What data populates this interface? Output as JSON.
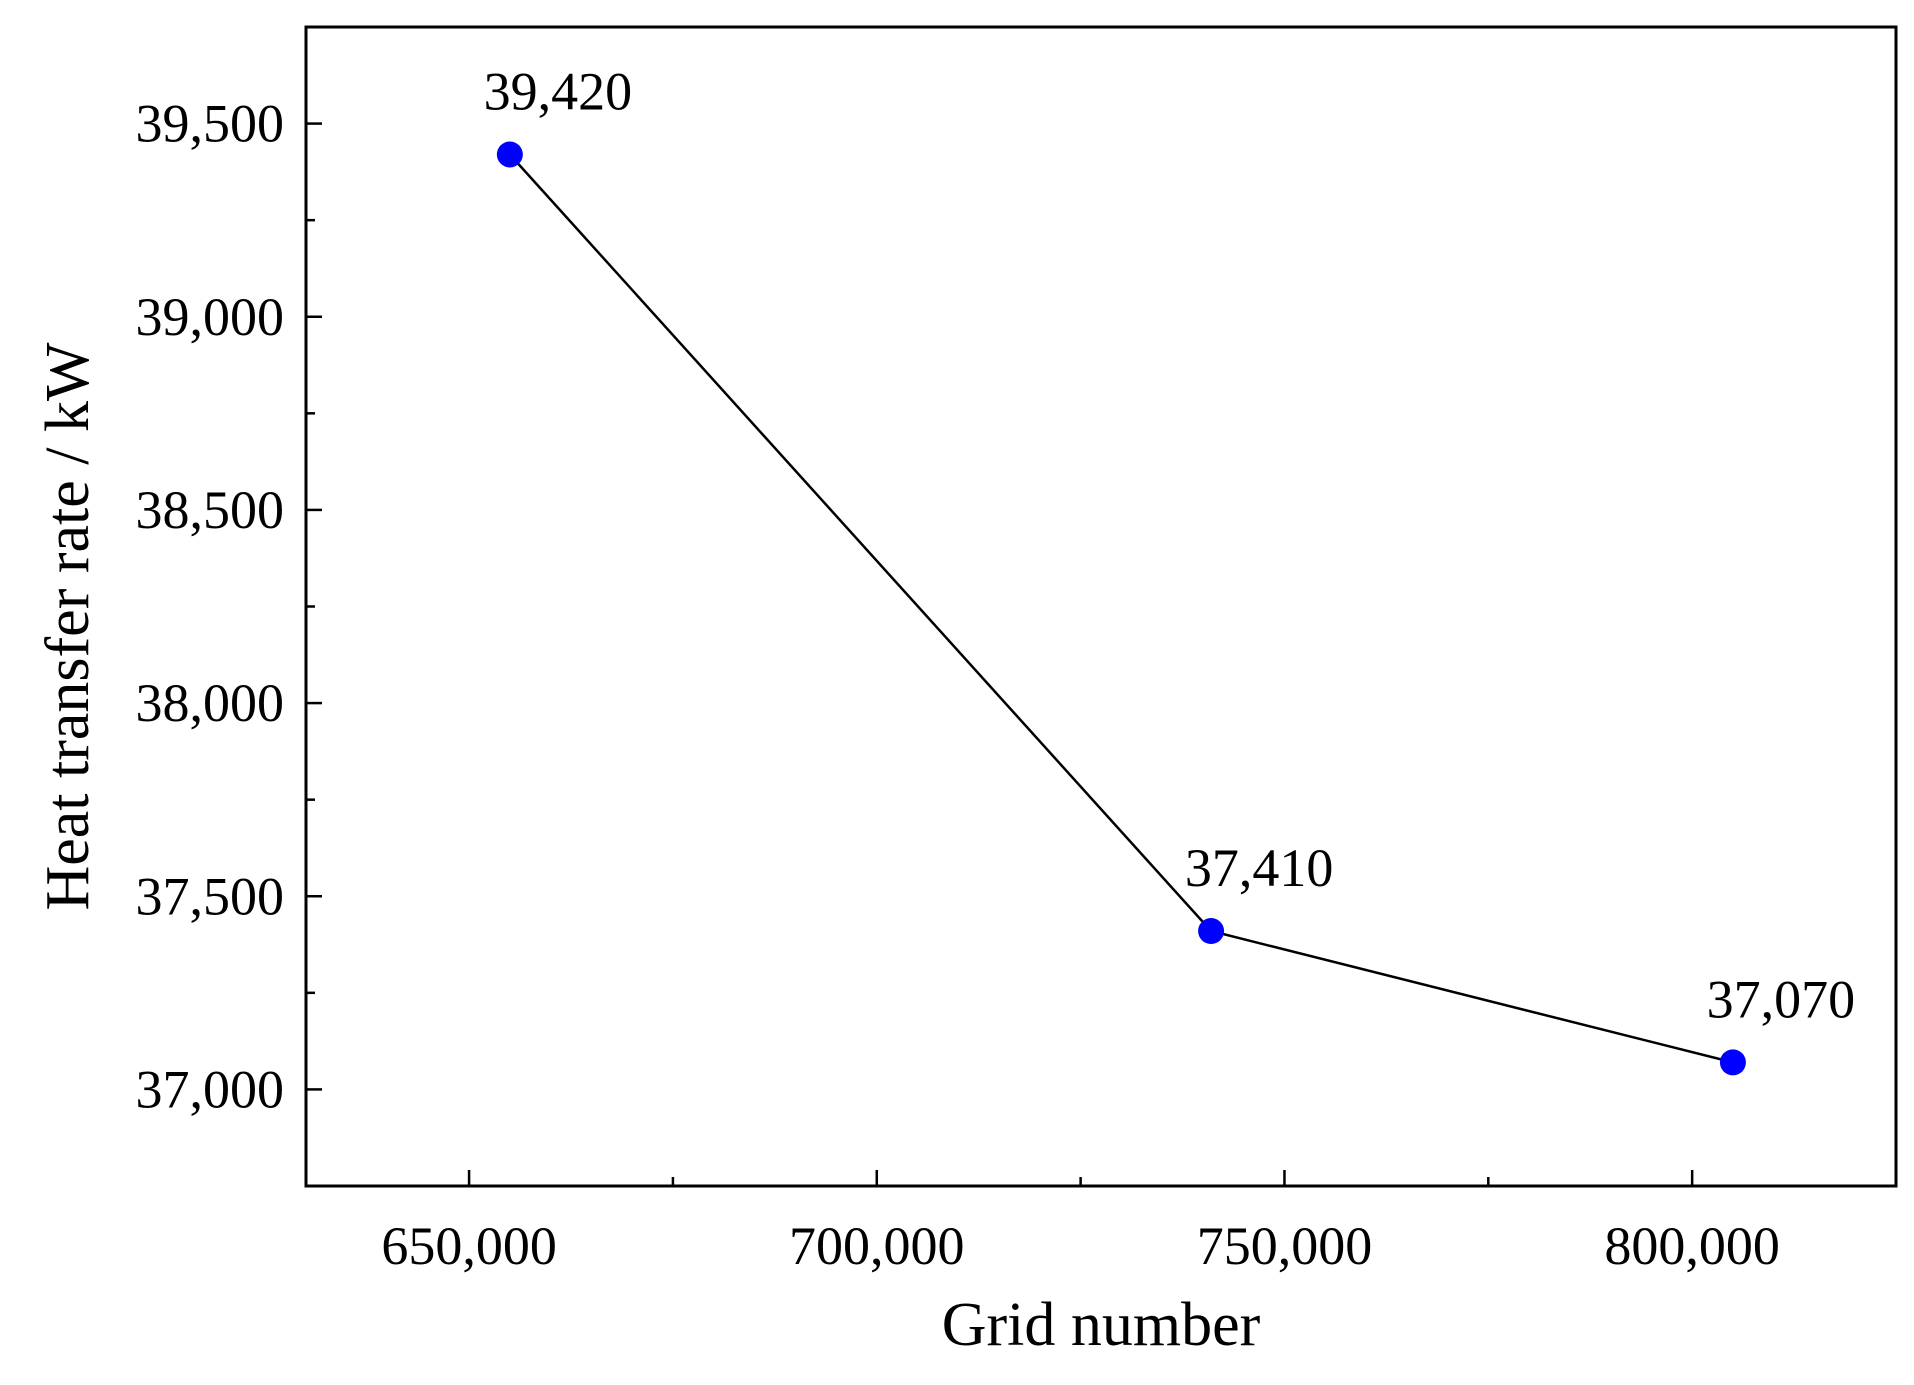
{
  "chart_data": {
    "type": "line",
    "title": "",
    "xlabel": "Grid number",
    "ylabel": "Heat transfer rate / kW",
    "xlim": [
      630000,
      825000
    ],
    "ylim": [
      36750,
      39750
    ],
    "x_ticks": [
      650000,
      700000,
      750000,
      800000
    ],
    "x_tick_labels": [
      "650,000",
      "700,000",
      "750,000",
      "800,000"
    ],
    "x_minor_ticks": [
      675000,
      725000,
      775000
    ],
    "y_ticks": [
      37000,
      37500,
      38000,
      38500,
      39000,
      39500
    ],
    "y_tick_labels": [
      "37,000",
      "37,500",
      "38,000",
      "38,500",
      "39,000",
      "39,500"
    ],
    "y_minor_ticks": [
      36750,
      37250,
      37750,
      38250,
      38750,
      39250
    ],
    "series": [
      {
        "x": [
          655000,
          741000,
          805000
        ],
        "y": [
          39420,
          37410,
          37070
        ],
        "labels": [
          "39,420",
          "37,410",
          "37,070"
        ]
      }
    ],
    "marker_color": "#0000ff",
    "line_color": "#000000",
    "grid": false,
    "legend": "none"
  }
}
